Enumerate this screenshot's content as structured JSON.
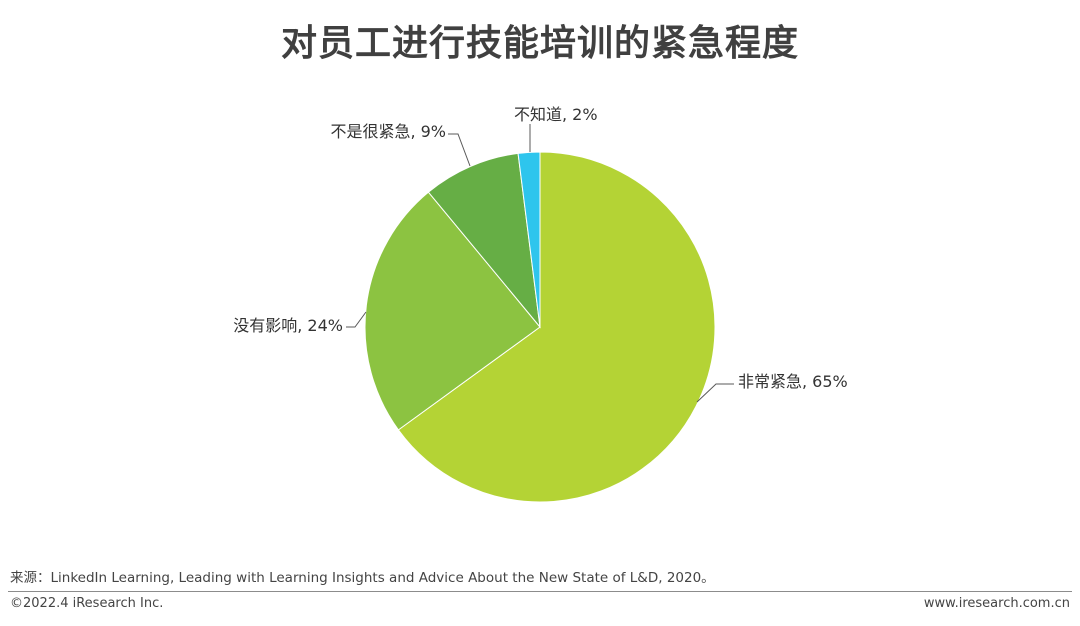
{
  "chart_data": {
    "type": "pie",
    "title": "对员工进行技能培训的紧急程度",
    "slices": [
      {
        "label": "非常紧急",
        "value": 65,
        "display": "非常紧急, 65%",
        "color": "#b4d335"
      },
      {
        "label": "没有影响",
        "value": 24,
        "display": "没有影响, 24%",
        "color": "#8cc341"
      },
      {
        "label": "不是很紧急",
        "value": 9,
        "display": "不是很紧急, 9%",
        "color": "#66ae45"
      },
      {
        "label": "不知道",
        "value": 2,
        "display": "不知道, 2%",
        "color": "#2ec5ed"
      }
    ]
  },
  "footer": {
    "source": "来源：LinkedIn Learning, Leading with Learning Insights and Advice About the New State of L&D, 2020。",
    "copyright": "©2022.4 iResearch Inc.",
    "website": "www.iresearch.com.cn"
  }
}
